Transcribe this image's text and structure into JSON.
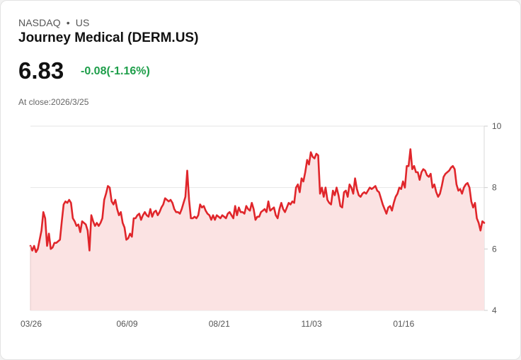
{
  "header": {
    "exchange": "NASDAQ",
    "separator": "•",
    "region": "US",
    "title": "Journey Medical (DERM.US)",
    "price": "6.83",
    "change": "-0.08(-1.16%)",
    "as_of": "At close:2026/3/25"
  },
  "colors": {
    "line": "#e0262b",
    "fill": "#fbe3e3",
    "change_text": "#1e9e4a",
    "grid": "#e6e6e6"
  },
  "chart_data": {
    "type": "area",
    "title": "Journey Medical (DERM.US)",
    "xlabel": "",
    "ylabel": "",
    "ylim": [
      4,
      10
    ],
    "y_ticks": [
      10,
      8,
      6,
      4
    ],
    "x_ticks": [
      {
        "label": "03/26",
        "t": 0
      },
      {
        "label": "06/09",
        "t": 52
      },
      {
        "label": "08/21",
        "t": 102
      },
      {
        "label": "11/03",
        "t": 152
      },
      {
        "label": "01/16",
        "t": 202
      }
    ],
    "x_range": [
      0,
      246
    ],
    "grid": true,
    "series": [
      {
        "name": "DERM.US",
        "points": [
          [
            0,
            6.1
          ],
          [
            1,
            5.95
          ],
          [
            2,
            6.1
          ],
          [
            3,
            5.9
          ],
          [
            4,
            6.0
          ],
          [
            5,
            6.3
          ],
          [
            6,
            6.6
          ],
          [
            7,
            7.2
          ],
          [
            8,
            7.0
          ],
          [
            9,
            6.1
          ],
          [
            10,
            6.5
          ],
          [
            11,
            6.0
          ],
          [
            12,
            6.05
          ],
          [
            13,
            6.2
          ],
          [
            14,
            6.2
          ],
          [
            15,
            6.25
          ],
          [
            16,
            6.3
          ],
          [
            17,
            6.9
          ],
          [
            18,
            7.45
          ],
          [
            19,
            7.55
          ],
          [
            20,
            7.5
          ],
          [
            21,
            7.6
          ],
          [
            22,
            7.5
          ],
          [
            23,
            7.0
          ],
          [
            24,
            6.9
          ],
          [
            25,
            6.75
          ],
          [
            26,
            6.8
          ],
          [
            27,
            6.55
          ],
          [
            28,
            6.9
          ],
          [
            29,
            6.85
          ],
          [
            30,
            6.8
          ],
          [
            31,
            6.6
          ],
          [
            32,
            5.95
          ],
          [
            33,
            7.1
          ],
          [
            34,
            6.9
          ],
          [
            35,
            6.75
          ],
          [
            36,
            6.85
          ],
          [
            37,
            6.75
          ],
          [
            38,
            6.85
          ],
          [
            39,
            7.0
          ],
          [
            40,
            7.6
          ],
          [
            41,
            7.8
          ],
          [
            42,
            8.05
          ],
          [
            43,
            8.0
          ],
          [
            44,
            7.55
          ],
          [
            45,
            7.45
          ],
          [
            46,
            7.6
          ],
          [
            47,
            7.3
          ],
          [
            48,
            7.1
          ],
          [
            49,
            7.2
          ],
          [
            50,
            6.85
          ],
          [
            51,
            6.7
          ],
          [
            52,
            6.3
          ],
          [
            53,
            6.35
          ],
          [
            54,
            6.5
          ],
          [
            55,
            6.4
          ],
          [
            56,
            7.0
          ],
          [
            57,
            7.0
          ],
          [
            58,
            7.1
          ],
          [
            59,
            7.15
          ],
          [
            60,
            6.95
          ],
          [
            61,
            7.1
          ],
          [
            62,
            7.2
          ],
          [
            63,
            7.1
          ],
          [
            64,
            7.05
          ],
          [
            65,
            7.3
          ],
          [
            66,
            7.05
          ],
          [
            67,
            7.2
          ],
          [
            68,
            7.25
          ],
          [
            69,
            7.1
          ],
          [
            70,
            7.2
          ],
          [
            71,
            7.35
          ],
          [
            72,
            7.45
          ],
          [
            73,
            7.65
          ],
          [
            74,
            7.6
          ],
          [
            75,
            7.55
          ],
          [
            76,
            7.6
          ],
          [
            77,
            7.5
          ],
          [
            78,
            7.3
          ],
          [
            79,
            7.2
          ],
          [
            80,
            7.2
          ],
          [
            81,
            7.15
          ],
          [
            82,
            7.3
          ],
          [
            83,
            7.5
          ],
          [
            84,
            7.7
          ],
          [
            85,
            8.55
          ],
          [
            86,
            7.6
          ],
          [
            87,
            7.0
          ],
          [
            88,
            7.0
          ],
          [
            89,
            7.05
          ],
          [
            90,
            7.0
          ],
          [
            91,
            7.1
          ],
          [
            92,
            7.45
          ],
          [
            93,
            7.35
          ],
          [
            94,
            7.4
          ],
          [
            95,
            7.25
          ],
          [
            96,
            7.15
          ],
          [
            97,
            7.1
          ],
          [
            98,
            6.95
          ],
          [
            99,
            7.1
          ],
          [
            100,
            6.95
          ],
          [
            101,
            7.1
          ],
          [
            102,
            7.05
          ],
          [
            103,
            7.0
          ],
          [
            104,
            7.1
          ],
          [
            105,
            7.05
          ],
          [
            106,
            7.0
          ],
          [
            107,
            7.15
          ],
          [
            108,
            7.2
          ],
          [
            109,
            7.1
          ],
          [
            110,
            7.0
          ],
          [
            111,
            7.4
          ],
          [
            112,
            7.1
          ],
          [
            113,
            7.35
          ],
          [
            114,
            7.2
          ],
          [
            115,
            7.2
          ],
          [
            116,
            7.15
          ],
          [
            117,
            7.4
          ],
          [
            118,
            7.3
          ],
          [
            119,
            7.25
          ],
          [
            120,
            7.5
          ],
          [
            121,
            7.3
          ],
          [
            122,
            6.95
          ],
          [
            123,
            7.05
          ],
          [
            124,
            7.05
          ],
          [
            125,
            7.2
          ],
          [
            126,
            7.25
          ],
          [
            127,
            7.3
          ],
          [
            128,
            7.2
          ],
          [
            129,
            7.55
          ],
          [
            130,
            7.25
          ],
          [
            131,
            7.3
          ],
          [
            132,
            7.35
          ],
          [
            133,
            7.1
          ],
          [
            134,
            7.0
          ],
          [
            135,
            7.3
          ],
          [
            136,
            7.5
          ],
          [
            137,
            7.3
          ],
          [
            138,
            7.2
          ],
          [
            139,
            7.35
          ],
          [
            140,
            7.5
          ],
          [
            141,
            7.45
          ],
          [
            142,
            7.55
          ],
          [
            143,
            7.5
          ],
          [
            144,
            8.0
          ],
          [
            145,
            8.1
          ],
          [
            146,
            7.85
          ],
          [
            147,
            8.3
          ],
          [
            148,
            8.2
          ],
          [
            149,
            8.5
          ],
          [
            150,
            8.9
          ],
          [
            151,
            8.75
          ],
          [
            152,
            9.15
          ],
          [
            153,
            9.0
          ],
          [
            154,
            8.95
          ],
          [
            155,
            9.1
          ],
          [
            156,
            9.05
          ],
          [
            157,
            7.8
          ],
          [
            158,
            8.0
          ],
          [
            159,
            7.7
          ],
          [
            160,
            8.0
          ],
          [
            161,
            7.6
          ],
          [
            162,
            7.5
          ],
          [
            163,
            7.45
          ],
          [
            164,
            7.9
          ],
          [
            165,
            7.75
          ],
          [
            166,
            8.0
          ],
          [
            167,
            7.75
          ],
          [
            168,
            7.4
          ],
          [
            169,
            7.35
          ],
          [
            170,
            7.85
          ],
          [
            171,
            7.9
          ],
          [
            172,
            7.7
          ],
          [
            173,
            8.1
          ],
          [
            174,
            8.0
          ],
          [
            175,
            7.8
          ],
          [
            176,
            8.3
          ],
          [
            177,
            7.95
          ],
          [
            178,
            7.75
          ],
          [
            179,
            7.7
          ],
          [
            180,
            7.8
          ],
          [
            181,
            7.85
          ],
          [
            182,
            7.8
          ],
          [
            183,
            7.9
          ],
          [
            184,
            8.0
          ],
          [
            185,
            7.95
          ],
          [
            186,
            8.0
          ],
          [
            187,
            8.05
          ],
          [
            188,
            7.9
          ],
          [
            189,
            7.85
          ],
          [
            190,
            7.65
          ],
          [
            191,
            7.45
          ],
          [
            192,
            7.3
          ],
          [
            193,
            7.15
          ],
          [
            194,
            7.35
          ],
          [
            195,
            7.4
          ],
          [
            196,
            7.25
          ],
          [
            197,
            7.5
          ],
          [
            198,
            7.7
          ],
          [
            199,
            7.8
          ],
          [
            200,
            8.0
          ],
          [
            201,
            7.95
          ],
          [
            202,
            8.2
          ],
          [
            203,
            8.0
          ],
          [
            204,
            8.7
          ],
          [
            205,
            8.7
          ],
          [
            206,
            9.25
          ],
          [
            207,
            8.6
          ],
          [
            208,
            8.7
          ],
          [
            209,
            8.5
          ],
          [
            210,
            8.5
          ],
          [
            211,
            8.25
          ],
          [
            212,
            8.5
          ],
          [
            213,
            8.6
          ],
          [
            214,
            8.55
          ],
          [
            215,
            8.4
          ],
          [
            216,
            8.35
          ],
          [
            217,
            8.45
          ],
          [
            218,
            8.0
          ],
          [
            219,
            8.1
          ],
          [
            220,
            7.85
          ],
          [
            221,
            7.7
          ],
          [
            222,
            7.8
          ],
          [
            223,
            8.05
          ],
          [
            224,
            8.35
          ],
          [
            225,
            8.45
          ],
          [
            226,
            8.5
          ],
          [
            227,
            8.55
          ],
          [
            228,
            8.65
          ],
          [
            229,
            8.7
          ],
          [
            230,
            8.6
          ],
          [
            231,
            8.1
          ],
          [
            232,
            7.9
          ],
          [
            233,
            7.95
          ],
          [
            234,
            7.8
          ],
          [
            235,
            8.0
          ],
          [
            236,
            8.1
          ],
          [
            237,
            8.15
          ],
          [
            238,
            8.0
          ],
          [
            239,
            7.55
          ],
          [
            240,
            7.35
          ],
          [
            241,
            7.5
          ],
          [
            242,
            7.0
          ],
          [
            243,
            6.85
          ],
          [
            244,
            6.6
          ],
          [
            245,
            6.9
          ],
          [
            246,
            6.85
          ]
        ]
      }
    ]
  }
}
